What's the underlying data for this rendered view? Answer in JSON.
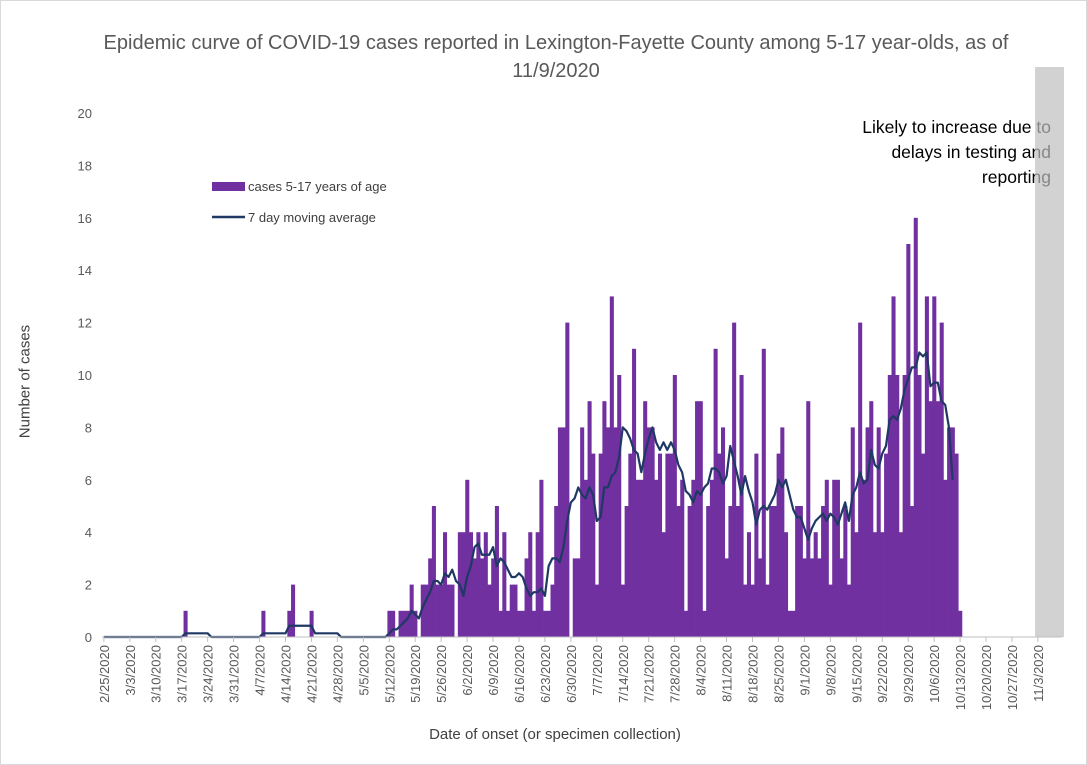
{
  "chart_data": {
    "type": "bar",
    "title": "Epidemic curve of COVID-19 cases reported in Lexington-Fayette County among 5-17 year-olds, as of 11/9/2020",
    "xlabel": "Date of onset (or specimen collection)",
    "ylabel": "Number of cases",
    "ylim": [
      0,
      20
    ],
    "yticks": [
      0,
      2,
      4,
      6,
      8,
      10,
      12,
      14,
      16,
      18,
      20
    ],
    "x_start_date": "2/25/2020",
    "x_end_date": "11/9/2020",
    "xticks": [
      "2/25/2020",
      "3/3/2020",
      "3/10/2020",
      "3/17/2020",
      "3/24/2020",
      "3/31/2020",
      "4/7/2020",
      "4/14/2020",
      "4/21/2020",
      "4/28/2020",
      "5/5/2020",
      "5/12/2020",
      "5/19/2020",
      "5/26/2020",
      "6/2/2020",
      "6/9/2020",
      "6/16/2020",
      "6/23/2020",
      "6/30/2020",
      "7/7/2020",
      "7/14/2020",
      "7/21/2020",
      "7/28/2020",
      "8/4/2020",
      "8/11/2020",
      "8/18/2020",
      "8/25/2020",
      "9/1/2020",
      "9/8/2020",
      "9/15/2020",
      "9/22/2020",
      "9/29/2020",
      "10/6/2020",
      "10/13/2020",
      "10/20/2020",
      "10/27/2020",
      "11/3/2020"
    ],
    "grid": false,
    "legend_position": "top-left",
    "series": [
      {
        "name": "cases 5-17 years of age",
        "type": "bar",
        "color": "#7030a0",
        "values": [
          0,
          0,
          0,
          0,
          0,
          0,
          0,
          0,
          0,
          0,
          0,
          0,
          0,
          0,
          0,
          0,
          0,
          0,
          0,
          0,
          0,
          0,
          1,
          0,
          0,
          0,
          0,
          0,
          0,
          0,
          0,
          0,
          0,
          0,
          0,
          0,
          0,
          0,
          0,
          0,
          0,
          0,
          0,
          1,
          0,
          0,
          0,
          0,
          0,
          0,
          1,
          2,
          0,
          0,
          0,
          0,
          1,
          0,
          0,
          0,
          0,
          0,
          0,
          0,
          0,
          0,
          0,
          0,
          0,
          0,
          0,
          0,
          0,
          0,
          0,
          0,
          0,
          1,
          1,
          0,
          1,
          1,
          1,
          2,
          1,
          0,
          2,
          2,
          3,
          5,
          2,
          2,
          4,
          2,
          2,
          0,
          4,
          4,
          6,
          4,
          3,
          4,
          3,
          4,
          2,
          3,
          5,
          1,
          4,
          1,
          2,
          2,
          1,
          1,
          3,
          4,
          1,
          4,
          6,
          1,
          1,
          2,
          5,
          8,
          8,
          12,
          0,
          3,
          3,
          8,
          6,
          9,
          7,
          2,
          7,
          9,
          8,
          13,
          8,
          10,
          2,
          5,
          7,
          11,
          6,
          6,
          9,
          8,
          8,
          6,
          7,
          4,
          7,
          7,
          10,
          5,
          6,
          1,
          5,
          6,
          9,
          9,
          1,
          5,
          6,
          11,
          7,
          8,
          3,
          5,
          12,
          5,
          10,
          2,
          4,
          2,
          7,
          3,
          11,
          2,
          5,
          5,
          7,
          8,
          4,
          1,
          1,
          5,
          5,
          3,
          9,
          3,
          4,
          3,
          5,
          6,
          2,
          6,
          6,
          3,
          5,
          2,
          8,
          4,
          12,
          6,
          8,
          9,
          4,
          8,
          4,
          7,
          10,
          13,
          10,
          4,
          10,
          15,
          5,
          16,
          10,
          7,
          13,
          9,
          13,
          9,
          12,
          6,
          8,
          8,
          7,
          1
        ]
      },
      {
        "name": "7 day moving average",
        "type": "line",
        "color": "#1f3864",
        "values": [
          0,
          0,
          0,
          0,
          0,
          0,
          0,
          0,
          0,
          0,
          0,
          0,
          0,
          0,
          0,
          0,
          0,
          0,
          0,
          0,
          0,
          0,
          0.14,
          0.14,
          0.14,
          0.14,
          0.14,
          0.14,
          0.14,
          0,
          0,
          0,
          0,
          0,
          0,
          0,
          0,
          0,
          0,
          0,
          0,
          0,
          0,
          0.14,
          0.14,
          0.14,
          0.14,
          0.14,
          0.14,
          0.14,
          0.43,
          0.43,
          0.43,
          0.43,
          0.43,
          0.43,
          0.43,
          0.14,
          0.14,
          0.14,
          0.14,
          0.14,
          0.14,
          0.14,
          0,
          0,
          0,
          0,
          0,
          0,
          0,
          0,
          0,
          0,
          0,
          0,
          0,
          0.14,
          0.29,
          0.29,
          0.43,
          0.57,
          0.71,
          1.0,
          0.86,
          0.71,
          1.14,
          1.43,
          1.71,
          2.14,
          2.14,
          2.0,
          2.43,
          2.29,
          2.57,
          2.14,
          2.0,
          1.57,
          2.29,
          2.71,
          3.43,
          3.57,
          3.14,
          3.14,
          3.14,
          3.43,
          2.71,
          3.0,
          2.86,
          2.57,
          2.29,
          2.29,
          2.43,
          2.29,
          1.86,
          1.57,
          1.71,
          1.71,
          1.86,
          1.57,
          2.71,
          3.0,
          3.0,
          2.86,
          3.43,
          4.43,
          5.14,
          5.29,
          5.71,
          5.43,
          5.29,
          5.71,
          5.43,
          4.43,
          4.57,
          5.71,
          5.71,
          6.14,
          6.29,
          6.86,
          8.0,
          7.86,
          7.57,
          7.14,
          7.0,
          6.29,
          7.0,
          7.57,
          8.0,
          7.43,
          7.14,
          7.43,
          7.14,
          7.43,
          7.14,
          6.57,
          6.29,
          5.57,
          5.43,
          5.14,
          5.57,
          5.43,
          5.71,
          5.86,
          6.43,
          6.43,
          6.29,
          5.86,
          6.14,
          7.29,
          6.71,
          6.14,
          5.43,
          6.14,
          5.57,
          5.14,
          4.29,
          4.86,
          5.0,
          4.86,
          5.14,
          5.43,
          6.0,
          5.71,
          6.0,
          5.43,
          4.86,
          4.57,
          4.57,
          4.14,
          3.71,
          4.14,
          4.43,
          4.57,
          4.71,
          4.43,
          4.71,
          4.57,
          4.29,
          4.71,
          5.14,
          4.43,
          5.43,
          5.71,
          6.29,
          5.86,
          6.0,
          7.14,
          6.57,
          6.43,
          7.0,
          7.29,
          8.29,
          8.43,
          8.29,
          8.71,
          9.43,
          9.86,
          10.29,
          10.29,
          10.86,
          10.71,
          10.86,
          9.57,
          9.71,
          9.71,
          9.0,
          8.86,
          8.0,
          6.0
        ]
      }
    ],
    "annotation": {
      "text": [
        "Likely to increase due to",
        "delays in testing and",
        "reporting"
      ],
      "shaded_from": "11/3/2020",
      "shaded_to": "11/9/2020",
      "shade_color": "#bfbfbf"
    }
  }
}
